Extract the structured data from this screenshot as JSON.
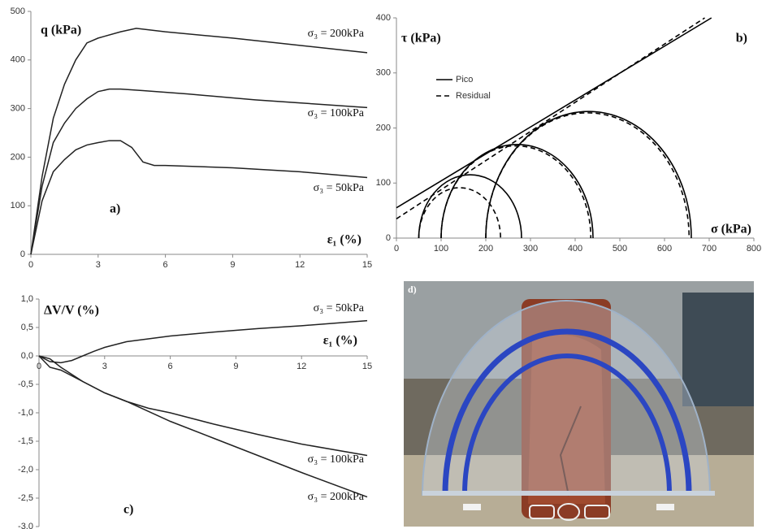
{
  "chart_data": [
    {
      "type": "line",
      "ylabel": "q (kPa)",
      "xlabel": "ε₁ (%)",
      "panel_label": "a)",
      "xlim": [
        0,
        15
      ],
      "xticks": [
        0,
        3,
        6,
        9,
        12,
        15
      ],
      "ylim": [
        0,
        500
      ],
      "yticks": [
        0,
        100,
        200,
        300,
        400,
        500
      ],
      "series": [
        {
          "name": "σ₃ = 200kPa",
          "color": "#222222",
          "x": [
            0,
            0.5,
            1,
            1.5,
            2,
            2.5,
            3,
            4,
            4.7,
            6,
            9,
            12,
            15
          ],
          "values": [
            0,
            160,
            280,
            350,
            400,
            435,
            445,
            458,
            465,
            458,
            445,
            430,
            415
          ]
        },
        {
          "name": "σ₃ = 100kPa",
          "color": "#222222",
          "x": [
            0,
            0.5,
            1,
            1.5,
            2,
            2.5,
            3,
            3.5,
            4,
            5,
            7,
            10,
            15
          ],
          "values": [
            0,
            140,
            230,
            270,
            300,
            320,
            335,
            340,
            340,
            337,
            330,
            318,
            302
          ]
        },
        {
          "name": "σ₃ = 50kPa",
          "color": "#222222",
          "x": [
            0,
            0.5,
            1,
            1.5,
            2,
            2.5,
            3,
            3.5,
            4,
            4.5,
            5,
            5.5,
            6,
            9,
            12,
            15
          ],
          "values": [
            0,
            110,
            170,
            195,
            215,
            225,
            230,
            234,
            234,
            220,
            190,
            183,
            183,
            178,
            170,
            158
          ]
        }
      ]
    },
    {
      "type": "mohr",
      "ylabel": "τ (kPa)",
      "xlabel": "σ (kPa)",
      "panel_label": "b)",
      "xlim": [
        0,
        800
      ],
      "xticks": [
        0,
        100,
        200,
        300,
        400,
        500,
        600,
        700,
        800
      ],
      "ylim": [
        0,
        400
      ],
      "yticks": [
        0,
        100,
        200,
        300,
        400
      ],
      "series": [
        {
          "name": "Pico",
          "color": "#000000",
          "dash": false,
          "sigma3": [
            50,
            100,
            200
          ],
          "sigma1": [
            280,
            440,
            660
          ],
          "envelope_x": [
            0,
            705
          ],
          "envelope_y": [
            55,
            400
          ]
        },
        {
          "name": "Residual",
          "color": "#000000",
          "dash": true,
          "sigma3": [
            50,
            100,
            200
          ],
          "sigma1": [
            233,
            435,
            655
          ],
          "envelope_x": [
            0,
            690
          ],
          "envelope_y": [
            35,
            400
          ]
        }
      ]
    },
    {
      "type": "line",
      "ylabel": "ΔV/V  (%)",
      "xlabel": "ε₁ (%)",
      "panel_label": "c)",
      "xlim": [
        0,
        15
      ],
      "xticks": [
        0,
        3,
        6,
        9,
        12,
        15
      ],
      "ylim": [
        -3,
        1
      ],
      "yticks": [
        {
          "value": 1,
          "label": "1,0"
        },
        {
          "value": 0.5,
          "label": "0,5"
        },
        {
          "value": 0,
          "label": "0,0"
        },
        {
          "value": -0.5,
          "label": "-0,5"
        },
        {
          "value": -1,
          "label": "-1,0"
        },
        {
          "value": -1.5,
          "label": "-1,5"
        },
        {
          "value": -2,
          "label": "-2,0"
        },
        {
          "value": -2.5,
          "label": "-2,5"
        },
        {
          "value": -3,
          "label": "-3,0"
        }
      ],
      "series": [
        {
          "name": "σ₃ = 50kPa",
          "color": "#222222",
          "x": [
            0,
            0.5,
            1,
            1.5,
            2,
            2.5,
            3,
            4,
            5,
            6,
            8,
            10,
            12,
            15
          ],
          "values": [
            0,
            -0.1,
            -0.12,
            -0.08,
            0,
            0.08,
            0.15,
            0.25,
            0.3,
            0.35,
            0.42,
            0.48,
            0.53,
            0.62
          ]
        },
        {
          "name": "σ₃ = 100kPa",
          "color": "#222222",
          "x": [
            0,
            0.5,
            1,
            2,
            3,
            4,
            5,
            6,
            8,
            10,
            12,
            15
          ],
          "values": [
            0,
            -0.2,
            -0.25,
            -0.45,
            -0.65,
            -0.8,
            -0.92,
            -1.0,
            -1.2,
            -1.38,
            -1.55,
            -1.75
          ]
        },
        {
          "name": "σ₃ = 200kPa",
          "color": "#222222",
          "x": [
            0,
            0.5,
            1,
            2,
            3,
            4,
            6,
            8,
            10,
            12,
            15
          ],
          "values": [
            0,
            -0.05,
            -0.2,
            -0.45,
            -0.65,
            -0.8,
            -1.15,
            -1.45,
            -1.75,
            -2.05,
            -2.48
          ]
        }
      ]
    }
  ],
  "photo_label": "d)"
}
